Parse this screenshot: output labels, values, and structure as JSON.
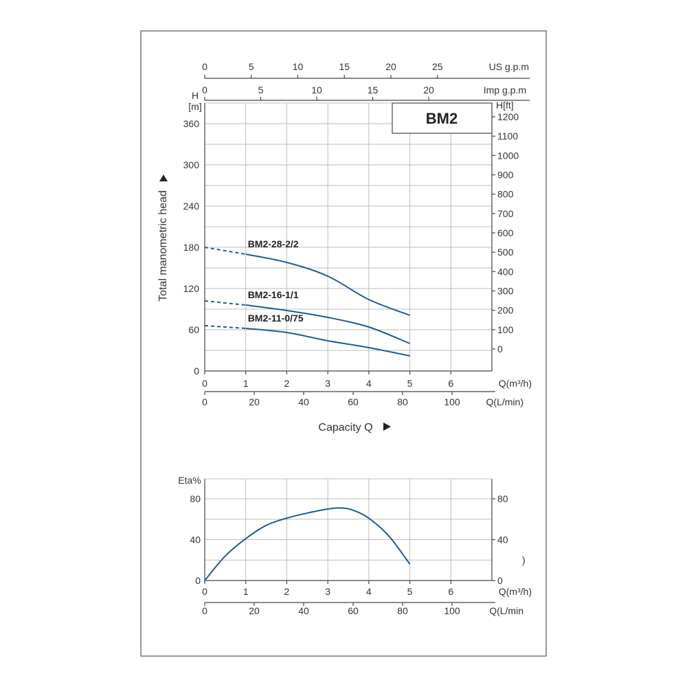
{
  "chart_data": [
    {
      "type": "line",
      "badge": "BM2",
      "y_label_left_top": "H",
      "y_label_left_unit": "[m]",
      "y_label_right": "H[ft]",
      "y_title": "Total manometric head",
      "x_title": "Capacity Q",
      "ylim": [
        0,
        360
      ],
      "yticks": [
        0,
        60,
        120,
        180,
        240,
        300,
        360
      ],
      "y_ft_ticks": [
        0,
        100,
        200,
        300,
        400,
        500,
        600,
        700,
        800,
        900,
        1000,
        1100,
        1200
      ],
      "xlim": [
        0,
        7
      ],
      "x_m3h_ticks": [
        0,
        1,
        2,
        3,
        4,
        5,
        6
      ],
      "x_m3h_label": "Q(m³/h)",
      "x_lmin_ticks": [
        0,
        20,
        40,
        60,
        80,
        100
      ],
      "x_lmin_label": "Q(L/min)",
      "x_usgpm_ticks": [
        0,
        5,
        10,
        15,
        20,
        25
      ],
      "x_usgpm_label": "US g.p.m",
      "x_impgpm_ticks": [
        0,
        5,
        10,
        15,
        20
      ],
      "x_impgpm_label": "Imp g.p.m",
      "series": [
        {
          "name": "BM2-28-2/2",
          "dashed": {
            "x": [
              0,
              1.0
            ],
            "y": [
              180,
              170
            ]
          },
          "x": [
            1.0,
            2.0,
            3.0,
            4.0,
            5.0
          ],
          "y": [
            170,
            158,
            138,
            104,
            81
          ]
        },
        {
          "name": "BM2-16-1/1",
          "dashed": {
            "x": [
              0,
              1.0
            ],
            "y": [
              102,
              96
            ]
          },
          "x": [
            1.0,
            2.0,
            3.0,
            4.0,
            5.0
          ],
          "y": [
            96,
            88,
            78,
            64,
            40
          ]
        },
        {
          "name": "BM2-11-0/75",
          "dashed": {
            "x": [
              0,
              1.0
            ],
            "y": [
              66,
              62
            ]
          },
          "x": [
            1.0,
            2.0,
            3.0,
            4.0,
            5.0
          ],
          "y": [
            62,
            56,
            44,
            34,
            22
          ]
        }
      ],
      "color": "#1f5a96"
    },
    {
      "type": "line",
      "y_label": "Eta%",
      "ylim": [
        0,
        80
      ],
      "yticks": [
        0,
        40,
        80
      ],
      "right_yticks": [
        0,
        40,
        80
      ],
      "right_note": ")",
      "xlim": [
        0,
        7
      ],
      "x_m3h_ticks": [
        0,
        1,
        2,
        3,
        4,
        5,
        6
      ],
      "x_m3h_label": "Q(m³/h)",
      "x_lmin_ticks": [
        0,
        20,
        40,
        60,
        80,
        100
      ],
      "x_lmin_label": "Q(L/min",
      "series": [
        {
          "x": [
            0,
            0.5,
            1.0,
            1.5,
            2.0,
            2.5,
            3.0,
            3.3,
            3.6,
            4.0,
            4.5,
            5.0
          ],
          "y": [
            0,
            24,
            41,
            54,
            61,
            66,
            70,
            71,
            69,
            61,
            43,
            16
          ]
        }
      ],
      "color": "#1f5a96"
    }
  ]
}
